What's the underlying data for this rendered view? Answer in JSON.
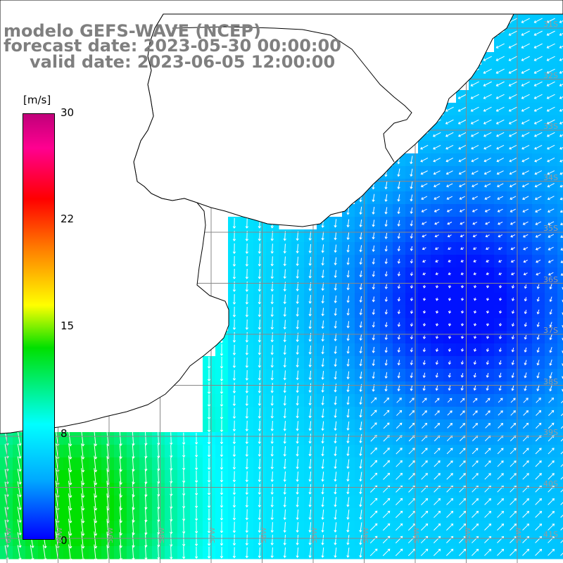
{
  "title": {
    "line1": "modelo GEFS-WAVE (NCEP)",
    "line2": "forecast date: 2023-05-30 00:00:00",
    "line3": "valid date: 2023-06-05 12:00:00"
  },
  "colorbar": {
    "unit": "[m/s]",
    "ticks": [
      "30",
      "22",
      "15",
      "8",
      "0"
    ],
    "tick_values": [
      30,
      22,
      15,
      8,
      0
    ],
    "min": 0,
    "max": 30
  },
  "map": {
    "lon_labels": [
      "61W",
      "60W",
      "59W",
      "58W",
      "57W",
      "56W",
      "55W",
      "54W",
      "53W",
      "52W",
      "51W"
    ],
    "lat_labels": [
      "31S",
      "32S",
      "33S",
      "34S",
      "35S",
      "36S",
      "37S",
      "38S",
      "39S",
      "40S",
      "41S"
    ],
    "colors": {
      "land": "#ffffff",
      "coast": "#000000",
      "grid": "#888888",
      "vectors": "#ffffff",
      "title": "#7f7f7f"
    }
  }
}
